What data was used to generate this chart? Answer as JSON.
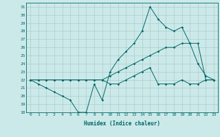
{
  "xlabel": "Humidex (Indice chaleur)",
  "background_color": "#cce9e9",
  "grid_color": "#aacccc",
  "line_color": "#006666",
  "xlim": [
    -0.5,
    23.5
  ],
  "ylim": [
    18,
    31.5
  ],
  "yticks": [
    18,
    19,
    20,
    21,
    22,
    23,
    24,
    25,
    26,
    27,
    28,
    29,
    30,
    31
  ],
  "xticks": [
    0,
    1,
    2,
    3,
    4,
    5,
    6,
    7,
    8,
    9,
    10,
    11,
    12,
    13,
    14,
    15,
    16,
    17,
    18,
    19,
    20,
    21,
    22,
    23
  ],
  "line1_x": [
    0,
    1,
    2,
    3,
    4,
    5,
    6,
    7,
    8,
    9,
    10,
    11,
    12,
    13,
    14,
    15,
    16,
    17,
    18,
    19,
    20,
    21,
    22,
    23
  ],
  "line1_y": [
    22,
    21.5,
    21,
    20.5,
    20,
    19.5,
    18,
    18,
    21.5,
    19.5,
    23,
    24.5,
    25.5,
    26.5,
    28,
    31,
    29.5,
    28.5,
    28,
    28.5,
    26.5,
    24,
    22.5,
    22
  ],
  "line2_x": [
    0,
    1,
    2,
    3,
    4,
    5,
    6,
    7,
    8,
    9,
    10,
    11,
    12,
    13,
    14,
    15,
    16,
    17,
    18,
    19,
    20,
    21,
    22,
    23
  ],
  "line2_y": [
    22,
    22,
    22,
    22,
    22,
    22,
    22,
    22,
    22,
    22,
    22.5,
    23,
    23.5,
    24,
    24.5,
    25,
    25.5,
    26,
    26,
    26.5,
    26.5,
    26.5,
    22,
    22
  ],
  "line3_x": [
    0,
    1,
    2,
    3,
    4,
    5,
    6,
    7,
    8,
    9,
    10,
    11,
    12,
    13,
    14,
    15,
    16,
    17,
    18,
    19,
    20,
    21,
    22,
    23
  ],
  "line3_y": [
    22,
    22,
    22,
    22,
    22,
    22,
    22,
    22,
    22,
    22,
    21.5,
    21.5,
    22,
    22.5,
    23,
    23.5,
    21.5,
    21.5,
    21.5,
    22,
    21.5,
    21.5,
    22,
    22
  ]
}
